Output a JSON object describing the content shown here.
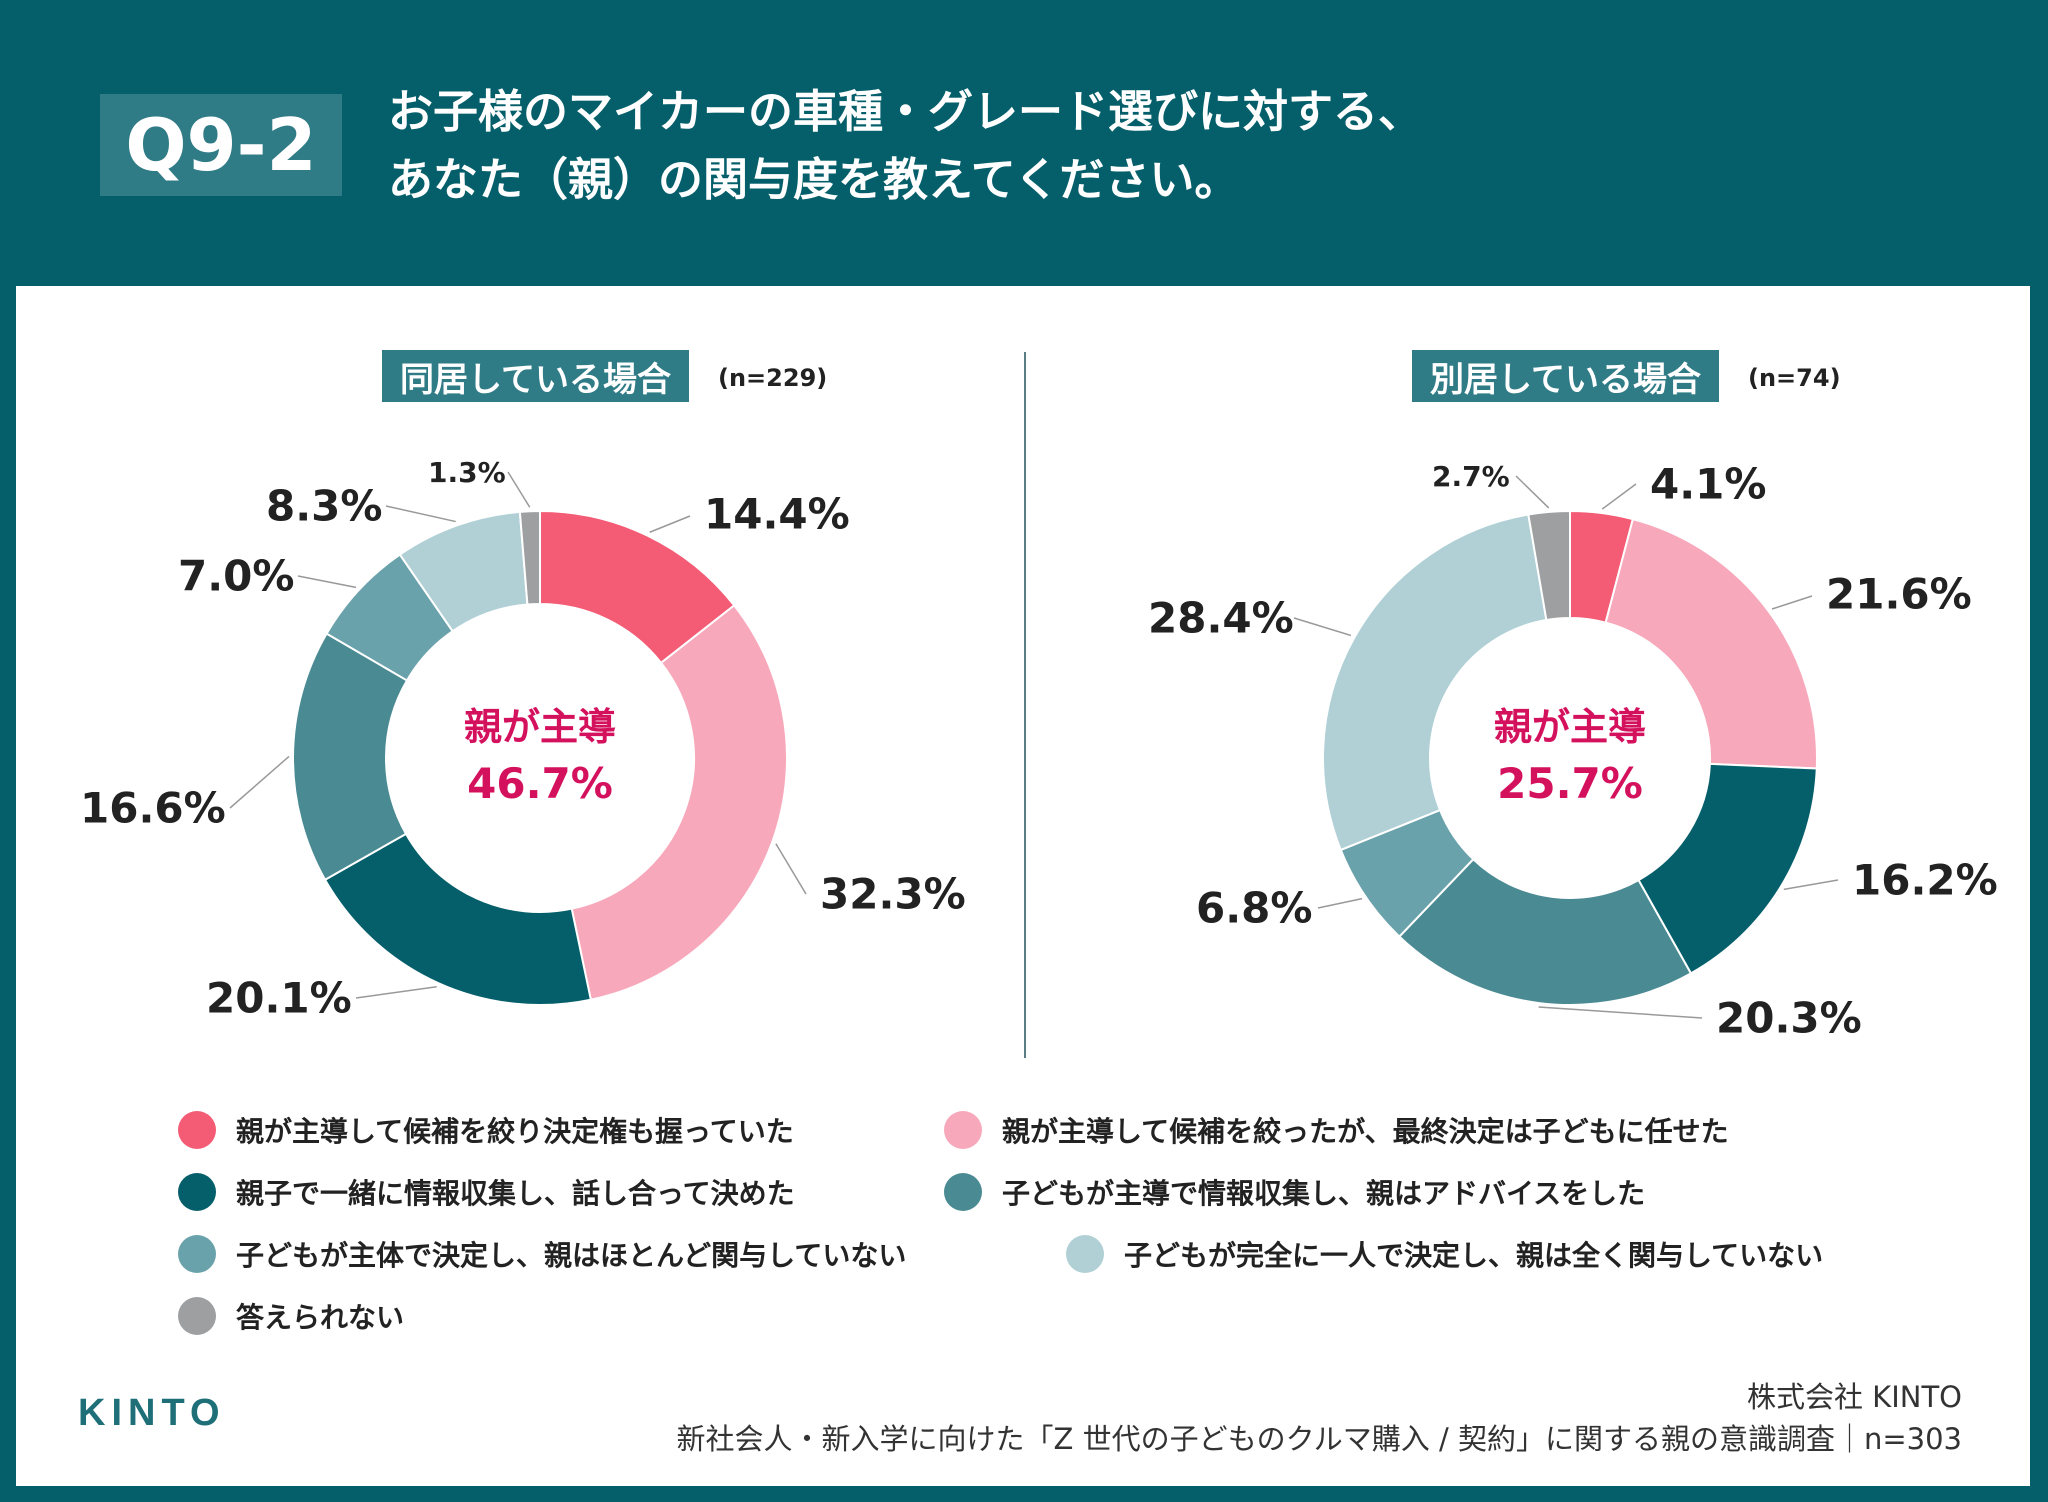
{
  "header": {
    "badge": "Q9-2",
    "title_line1": "お子様のマイカーの車種・グレード選びに対する、",
    "title_line2": "あなた（親）の関与度を教えてください。"
  },
  "colors": {
    "background": "#055f6b",
    "accent": "#d4115d",
    "slices": [
      "#f45b74",
      "#f8a8bb",
      "#055f6b",
      "#4a8a93",
      "#6aa2ab",
      "#b0d0d6",
      "#9e9fa1"
    ]
  },
  "chart_data": [
    {
      "type": "pie",
      "variant": "donut",
      "title": "同居している場合",
      "n_label": "(n=229)",
      "center_label": "親が主導",
      "center_value": "46.7%",
      "categories": [
        "親が主導して候補を絞り決定権も握っていた",
        "親が主導して候補を絞ったが、最終決定は子どもに任せた",
        "親子で一緒に情報収集し、話し合って決めた",
        "子どもが主導で情報収集し、親はアドバイスをした",
        "子どもが主体で決定し、親はほとんど関与していない",
        "子どもが完全に一人で決定し、親は全く関与していない",
        "答えられない"
      ],
      "values": [
        14.4,
        32.3,
        20.1,
        16.6,
        7.0,
        8.3,
        1.3
      ],
      "labels": [
        "14.4%",
        "32.3%",
        "20.1%",
        "16.6%",
        "7.0%",
        "8.3%",
        "1.3%"
      ]
    },
    {
      "type": "pie",
      "variant": "donut",
      "title": "別居している場合",
      "n_label": "(n=74)",
      "center_label": "親が主導",
      "center_value": "25.7%",
      "categories": [
        "親が主導して候補を絞り決定権も握っていた",
        "親が主導して候補を絞ったが、最終決定は子どもに任せた",
        "親子で一緒に情報収集し、話し合って決めた",
        "子どもが主導で情報収集し、親はアドバイスをした",
        "子どもが主体で決定し、親はほとんど関与していない",
        "子どもが完全に一人で決定し、親は全く関与していない",
        "答えられない"
      ],
      "values": [
        4.1,
        21.6,
        16.2,
        20.3,
        6.8,
        28.4,
        2.7
      ],
      "labels": [
        "4.1%",
        "21.6%",
        "16.2%",
        "20.3%",
        "6.8%",
        "28.4%",
        "2.7%"
      ]
    }
  ],
  "legend": [
    "親が主導して候補を絞り決定権も握っていた",
    "親が主導して候補を絞ったが、最終決定は子どもに任せた",
    "親子で一緒に情報収集し、話し合って決めた",
    "子どもが主導で情報収集し、親はアドバイスをした",
    "子どもが主体で決定し、親はほとんど関与していない",
    "子どもが完全に一人で決定し、親は全く関与していない",
    "答えられない"
  ],
  "footer": {
    "logo": "KINTO",
    "company": "株式会社 KINTO",
    "survey": "新社会人・新入学に向けた「Z 世代の子どものクルマ購入 / 契約」に関する親の意識調査｜n=303"
  }
}
